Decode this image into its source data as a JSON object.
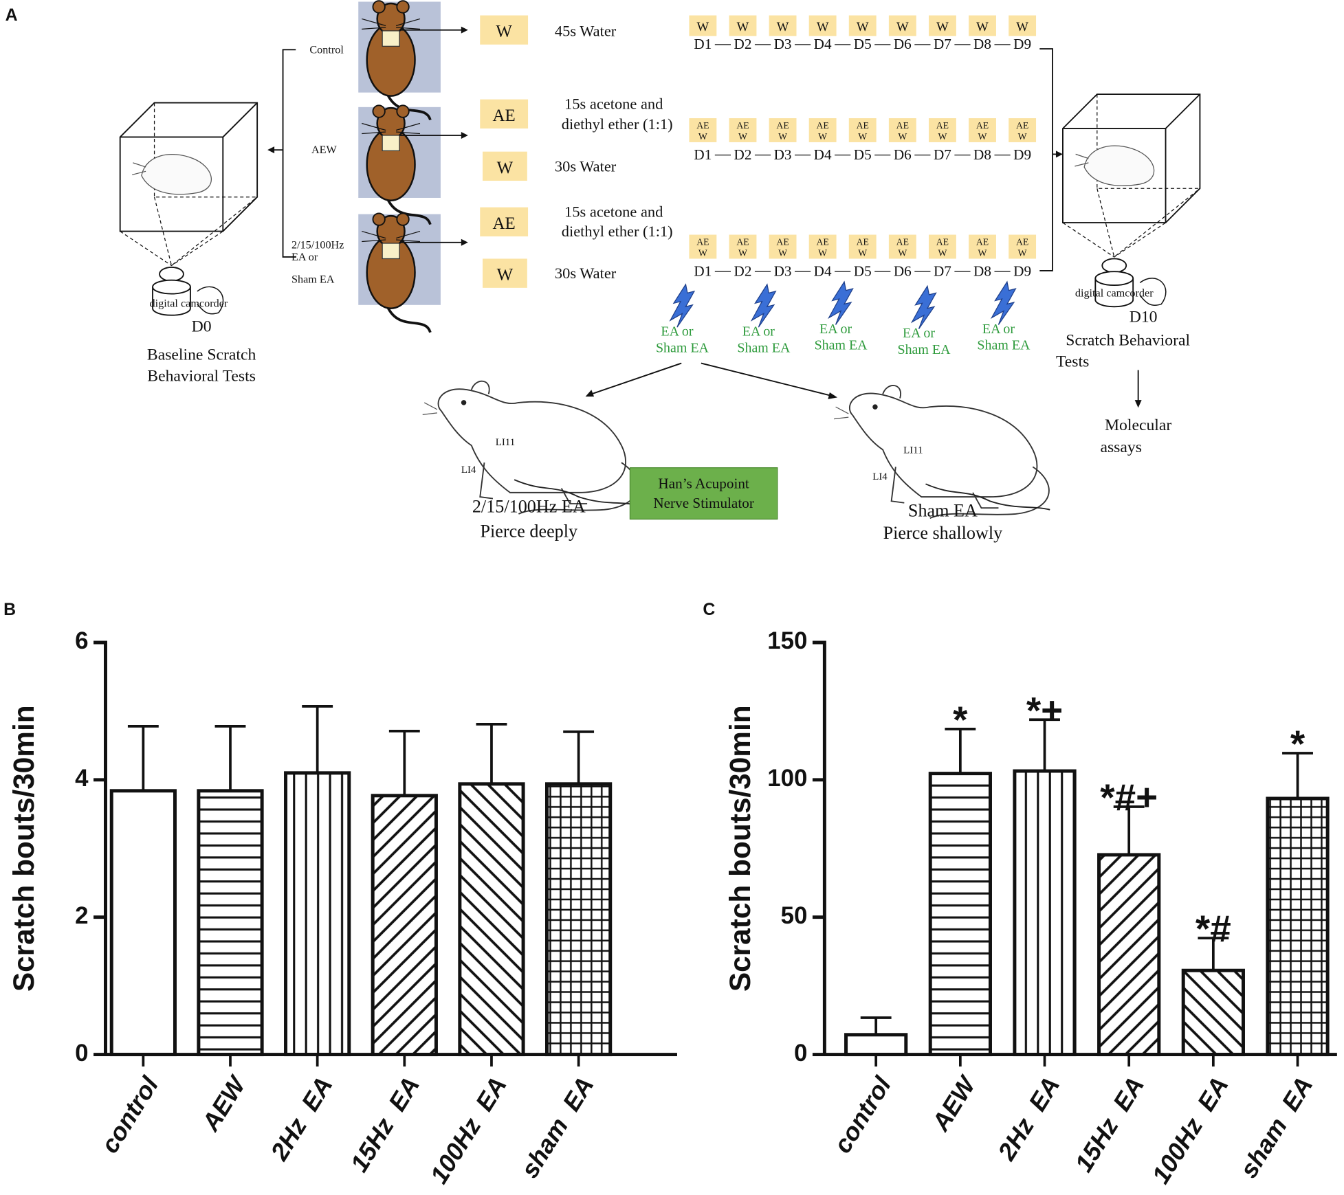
{
  "diagram": {
    "panel": "A",
    "groups": {
      "control": "Control",
      "aew": "AEW",
      "ea": [
        "2/15/100Hz",
        "EA or",
        "Sham EA"
      ]
    },
    "box_w": "W",
    "box_ae": "AE",
    "water_45": "45s Water",
    "acetone": [
      "15s acetone and",
      "diethyl ether (1:1)"
    ],
    "water_30": "30s Water",
    "days": [
      "D1",
      "D2",
      "D3",
      "D4",
      "D5",
      "D6",
      "D7",
      "D8",
      "D9"
    ],
    "camcorder": "digital camcorder",
    "baseline": {
      "day": "D0",
      "text": [
        "Baseline Scratch",
        "Behavioral Tests"
      ]
    },
    "final": {
      "day": "D10",
      "text": [
        "Scratch Behavioral",
        "Tests"
      ]
    },
    "assays": [
      "Molecular",
      "assays"
    ],
    "ea_label": [
      "EA or",
      "Sham EA"
    ],
    "acupoints": [
      "LI11",
      "LI4"
    ],
    "stimulator": [
      "Han’s Acupoint",
      "Nerve Stimulator"
    ],
    "deep": [
      "2/15/100Hz EA",
      "Pierce deeply"
    ],
    "shallow": [
      "Sham EA",
      "Pierce shallowly"
    ]
  },
  "chart_data": [
    {
      "type": "bar",
      "panel": "B",
      "ylabel": "Scratch bouts/30min",
      "categories": [
        "control",
        "AEW",
        "2Hz  EA",
        "15Hz  EA",
        "100Hz  EA",
        "sham  EA"
      ],
      "values": [
        3.84,
        3.84,
        4.1,
        3.77,
        3.94,
        3.94
      ],
      "errors": [
        0.94,
        0.94,
        0.97,
        0.94,
        0.87,
        0.76
      ],
      "patterns": [
        "none",
        "horizontal",
        "vertical",
        "diagonal",
        "antidiagonal",
        "grid"
      ],
      "ylim": [
        0,
        6
      ],
      "yticks": [
        0,
        2,
        4,
        6
      ]
    },
    {
      "type": "bar",
      "panel": "C",
      "ylabel": "Scratch bouts/30min",
      "categories": [
        "control",
        "AEW",
        "2Hz  EA",
        "15Hz  EA",
        "100Hz  EA",
        "sham  EA"
      ],
      "values": [
        7.2,
        102.3,
        103.2,
        72.7,
        30.6,
        93.2
      ],
      "errors": [
        6.2,
        16.2,
        18.7,
        17.5,
        11.8,
        16.5
      ],
      "annotations": [
        null,
        "*",
        "*+",
        "*#+",
        "*#",
        "*"
      ],
      "patterns": [
        "none",
        "horizontal",
        "vertical",
        "diagonal",
        "antidiagonal",
        "grid"
      ],
      "ylim": [
        0,
        150
      ],
      "yticks": [
        0,
        50,
        100,
        150
      ]
    }
  ]
}
